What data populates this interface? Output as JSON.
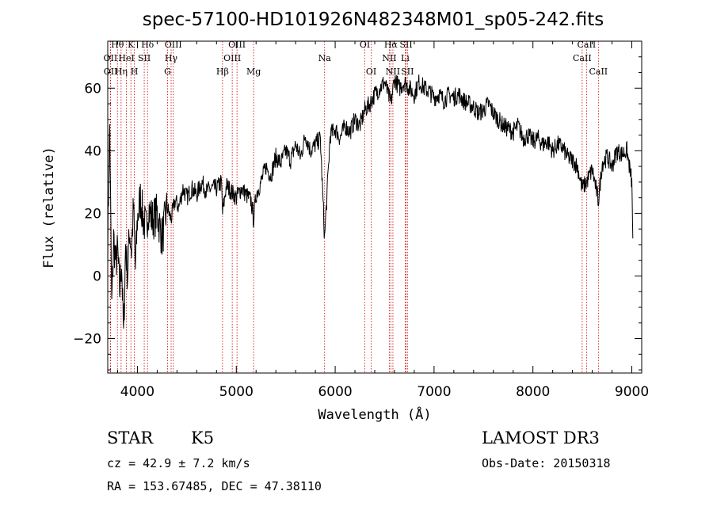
{
  "chart_data": {
    "type": "line",
    "title": "spec-57100-HD101926N482348M01_sp05-242.fits",
    "xlabel": "Wavelength (Å)",
    "ylabel": "Flux (relative)",
    "xlim": [
      3700,
      9100
    ],
    "ylim": [
      -31,
      75
    ],
    "xticks": [
      4000,
      5000,
      6000,
      7000,
      8000,
      9000
    ],
    "yticks": [
      -20,
      0,
      20,
      40,
      60
    ],
    "xtick_labels": [
      "4000",
      "5000",
      "6000",
      "7000",
      "8000",
      "9000"
    ],
    "ytick_labels": [
      "−20",
      "0",
      "20",
      "40",
      "60"
    ],
    "grid": false,
    "series": [
      {
        "name": "flux",
        "x": [
          3700,
          3720,
          3740,
          3760,
          3780,
          3800,
          3820,
          3840,
          3860,
          3880,
          3900,
          3920,
          3940,
          3960,
          3980,
          4000,
          4030,
          4060,
          4090,
          4110,
          4150,
          4200,
          4250,
          4300,
          4340,
          4380,
          4420,
          4460,
          4500,
          4550,
          4600,
          4650,
          4700,
          4750,
          4800,
          4850,
          4861,
          4900,
          4950,
          5000,
          5050,
          5100,
          5150,
          5175,
          5200,
          5250,
          5300,
          5350,
          5400,
          5450,
          5500,
          5550,
          5600,
          5650,
          5700,
          5750,
          5800,
          5850,
          5893,
          5950,
          6000,
          6050,
          6100,
          6150,
          6200,
          6250,
          6300,
          6350,
          6400,
          6450,
          6500,
          6563,
          6600,
          6650,
          6700,
          6750,
          6800,
          6850,
          6900,
          6950,
          7000,
          7050,
          7100,
          7150,
          7200,
          7250,
          7300,
          7350,
          7400,
          7450,
          7500,
          7550,
          7600,
          7650,
          7700,
          7750,
          7800,
          7850,
          7900,
          7950,
          8000,
          8050,
          8100,
          8150,
          8200,
          8250,
          8300,
          8350,
          8400,
          8450,
          8498,
          8542,
          8600,
          8662,
          8700,
          8750,
          8800,
          8850,
          8900,
          8950,
          9000,
          9010
        ],
        "values": [
          10,
          48,
          -10,
          12,
          4,
          8,
          -5,
          5,
          -20,
          10,
          0,
          15,
          8,
          22,
          2,
          18,
          25,
          18,
          15,
          22,
          18,
          20,
          12,
          22,
          18,
          24,
          22,
          28,
          25,
          28,
          26,
          30,
          27,
          28,
          28,
          30,
          20,
          29,
          27,
          25,
          28,
          26,
          24,
          18,
          26,
          30,
          35,
          32,
          38,
          36,
          40,
          37,
          42,
          38,
          45,
          40,
          42,
          44,
          12,
          45,
          47,
          44,
          48,
          46,
          50,
          48,
          53,
          55,
          58,
          60,
          62,
          55,
          63,
          60,
          62,
          60,
          58,
          62,
          60,
          59,
          57,
          58,
          56,
          58,
          57,
          58,
          56,
          55,
          54,
          52,
          53,
          55,
          52,
          50,
          48,
          47,
          46,
          48,
          44,
          45,
          43,
          44,
          42,
          43,
          40,
          42,
          41,
          38,
          37,
          35,
          28,
          30,
          34,
          24,
          36,
          38,
          35,
          40,
          39,
          40,
          30,
          12
        ]
      }
    ],
    "lines": [
      {
        "label": "Hθ",
        "x": 3798,
        "row": 1
      },
      {
        "label": "OII",
        "x": 3727,
        "row": 2
      },
      {
        "label": "OII",
        "x": 3729,
        "row": 3
      },
      {
        "label": "K",
        "x": 3934,
        "row": 1
      },
      {
        "label": "HeI",
        "x": 3889,
        "row": 2
      },
      {
        "label": "Hη",
        "x": 3835,
        "row": 3
      },
      {
        "label": "SII",
        "x": 4069,
        "row": 2
      },
      {
        "label": "H",
        "x": 3969,
        "row": 3
      },
      {
        "label": "Hδ",
        "x": 4102,
        "row": 1
      },
      {
        "label": "OIII",
        "x": 4363,
        "row": 1
      },
      {
        "label": "Hγ",
        "x": 4341,
        "row": 2
      },
      {
        "label": "G",
        "x": 4305,
        "row": 3
      },
      {
        "label": "Hβ",
        "x": 4861,
        "row": 3
      },
      {
        "label": "OIII",
        "x": 5007,
        "row": 1
      },
      {
        "label": "OIII",
        "x": 4959,
        "row": 2
      },
      {
        "label": "Mg",
        "x": 5175,
        "row": 3
      },
      {
        "label": "Na",
        "x": 5893,
        "row": 2
      },
      {
        "label": "OI",
        "x": 6300,
        "row": 1
      },
      {
        "label": "OI",
        "x": 6364,
        "row": 3
      },
      {
        "label": "Hα",
        "x": 6563,
        "row": 1
      },
      {
        "label": "NII",
        "x": 6548,
        "row": 2
      },
      {
        "label": "NII",
        "x": 6584,
        "row": 3
      },
      {
        "label": "SII",
        "x": 6717,
        "row": 1
      },
      {
        "label": "Li",
        "x": 6708,
        "row": 2
      },
      {
        "label": "SII",
        "x": 6731,
        "row": 3
      },
      {
        "label": "CaII",
        "x": 8498,
        "row": 2
      },
      {
        "label": "CaII",
        "x": 8542,
        "row": 1
      },
      {
        "label": "CaII",
        "x": 8662,
        "row": 3
      }
    ]
  },
  "info": {
    "object_class": "STAR",
    "subclass": "K5",
    "survey": "LAMOST DR3",
    "cz": "cz = 42.9 ± 7.2 km/s",
    "obs_date": "Obs-Date: 20150318",
    "radec": "RA = 153.67485, DEC =  47.38110"
  },
  "colors": {
    "spectrum": "#000000",
    "line_marker": "#cc0000",
    "axes": "#000000"
  }
}
